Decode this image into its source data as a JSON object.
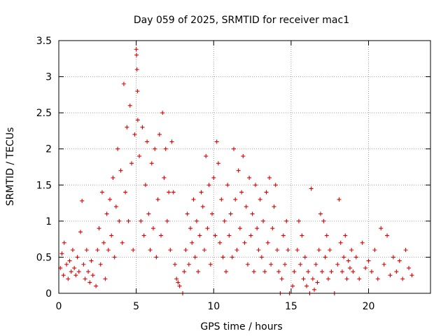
{
  "chart_data": {
    "type": "scatter",
    "title": "Day 059 of 2025, SRMTID for receiver mac1",
    "xlabel": "GPS time / hours",
    "ylabel": "SRMTID / TECUs",
    "xlim": [
      0,
      24
    ],
    "ylim": [
      0,
      3.5
    ],
    "grid": true,
    "marker": "+",
    "marker_color": "#e00000",
    "x_ticks": [
      0,
      5,
      10,
      15,
      20
    ],
    "x_tick_labels": [
      "0",
      "5",
      "10",
      "15",
      "20"
    ],
    "y_ticks": [
      0,
      0.5,
      1,
      1.5,
      2,
      2.5,
      3,
      3.5
    ],
    "y_tick_labels": [
      "0",
      "0.5",
      "1",
      "1.5",
      "2",
      "2.5",
      "3",
      "3.5"
    ],
    "series": [
      {
        "name": "mac1",
        "points": [
          [
            0.1,
            0.35
          ],
          [
            0.2,
            0.55
          ],
          [
            0.3,
            0.25
          ],
          [
            0.35,
            0.7
          ],
          [
            0.5,
            0.4
          ],
          [
            0.6,
            0.2
          ],
          [
            0.7,
            0.45
          ],
          [
            0.8,
            0.3
          ],
          [
            0.9,
            0.6
          ],
          [
            1.0,
            0.35
          ],
          [
            1.1,
            0.25
          ],
          [
            1.2,
            0.5
          ],
          [
            1.3,
            0.3
          ],
          [
            1.4,
            0.85
          ],
          [
            1.5,
            1.28
          ],
          [
            1.6,
            0.4
          ],
          [
            1.7,
            0.2
          ],
          [
            1.8,
            0.6
          ],
          [
            1.9,
            0.3
          ],
          [
            2.0,
            0.15
          ],
          [
            2.1,
            0.45
          ],
          [
            2.2,
            0.25
          ],
          [
            2.4,
            0.1
          ],
          [
            2.5,
            0.6
          ],
          [
            2.6,
            0.9
          ],
          [
            2.7,
            0.4
          ],
          [
            2.8,
            1.4
          ],
          [
            2.9,
            0.7
          ],
          [
            3.0,
            0.2
          ],
          [
            3.1,
            1.1
          ],
          [
            3.2,
            0.6
          ],
          [
            3.3,
            1.3
          ],
          [
            3.4,
            0.8
          ],
          [
            3.5,
            1.6
          ],
          [
            3.6,
            0.5
          ],
          [
            3.7,
            1.2
          ],
          [
            3.8,
            2.0
          ],
          [
            3.9,
            1.0
          ],
          [
            4.0,
            1.7
          ],
          [
            4.1,
            0.7
          ],
          [
            4.2,
            2.9
          ],
          [
            4.3,
            1.4
          ],
          [
            4.4,
            2.3
          ],
          [
            4.5,
            1.0
          ],
          [
            4.6,
            2.6
          ],
          [
            4.7,
            1.8
          ],
          [
            4.8,
            0.6
          ],
          [
            4.9,
            2.2
          ],
          [
            5.0,
            3.38
          ],
          [
            5.02,
            3.3
          ],
          [
            5.05,
            3.1
          ],
          [
            5.08,
            2.8
          ],
          [
            5.1,
            2.4
          ],
          [
            5.2,
            1.9
          ],
          [
            5.3,
            1.0
          ],
          [
            5.4,
            2.3
          ],
          [
            5.5,
            0.8
          ],
          [
            5.6,
            1.5
          ],
          [
            5.7,
            2.1
          ],
          [
            5.8,
            1.1
          ],
          [
            5.9,
            0.6
          ],
          [
            6.0,
            1.8
          ],
          [
            6.1,
            0.9
          ],
          [
            6.2,
            2.0
          ],
          [
            6.3,
            0.5
          ],
          [
            6.4,
            1.3
          ],
          [
            6.5,
            2.2
          ],
          [
            6.6,
            0.8
          ],
          [
            6.7,
            2.5
          ],
          [
            6.8,
            1.6
          ],
          [
            6.9,
            2.0
          ],
          [
            7.0,
            1.0
          ],
          [
            7.1,
            1.4
          ],
          [
            7.2,
            0.6
          ],
          [
            7.3,
            2.1
          ],
          [
            7.4,
            1.4
          ],
          [
            7.5,
            0.4
          ],
          [
            7.6,
            0.2
          ],
          [
            7.7,
            0.15
          ],
          [
            7.8,
            0.1
          ],
          [
            8.0,
            0.0
          ],
          [
            8.1,
            0.3
          ],
          [
            8.2,
            0.6
          ],
          [
            8.3,
            1.1
          ],
          [
            8.4,
            0.4
          ],
          [
            8.5,
            0.9
          ],
          [
            8.6,
            0.7
          ],
          [
            8.7,
            1.3
          ],
          [
            8.8,
            0.5
          ],
          [
            8.9,
            1.0
          ],
          [
            9.0,
            0.3
          ],
          [
            9.1,
            0.8
          ],
          [
            9.2,
            1.4
          ],
          [
            9.3,
            1.2
          ],
          [
            9.4,
            0.6
          ],
          [
            9.5,
            1.9
          ],
          [
            9.6,
            0.9
          ],
          [
            9.7,
            1.5
          ],
          [
            9.8,
            0.4
          ],
          [
            9.9,
            1.1
          ],
          [
            10.0,
            1.6
          ],
          [
            10.1,
            0.8
          ],
          [
            10.2,
            2.1
          ],
          [
            10.3,
            1.8
          ],
          [
            10.4,
            0.7
          ],
          [
            10.5,
            1.3
          ],
          [
            10.6,
            0.5
          ],
          [
            10.7,
            1.0
          ],
          [
            10.8,
            0.3
          ],
          [
            10.9,
            1.5
          ],
          [
            11.0,
            0.8
          ],
          [
            11.1,
            1.1
          ],
          [
            11.2,
            0.5
          ],
          [
            11.3,
            2.0
          ],
          [
            11.4,
            1.3
          ],
          [
            11.5,
            0.6
          ],
          [
            11.6,
            1.7
          ],
          [
            11.7,
            0.9
          ],
          [
            11.8,
            1.4
          ],
          [
            11.9,
            1.9
          ],
          [
            12.0,
            0.7
          ],
          [
            12.1,
            1.2
          ],
          [
            12.2,
            0.4
          ],
          [
            12.3,
            1.6
          ],
          [
            12.4,
            0.8
          ],
          [
            12.5,
            1.1
          ],
          [
            12.6,
            0.3
          ],
          [
            12.7,
            1.5
          ],
          [
            12.8,
            0.9
          ],
          [
            12.9,
            0.6
          ],
          [
            13.0,
            1.3
          ],
          [
            13.1,
            0.5
          ],
          [
            13.2,
            1.0
          ],
          [
            13.3,
            0.3
          ],
          [
            13.4,
            1.4
          ],
          [
            13.5,
            0.7
          ],
          [
            13.6,
            1.6
          ],
          [
            13.7,
            0.4
          ],
          [
            13.8,
            0.9
          ],
          [
            13.9,
            1.2
          ],
          [
            14.0,
            1.5
          ],
          [
            14.1,
            0.6
          ],
          [
            14.2,
            0.3
          ],
          [
            14.3,
            0.0
          ],
          [
            14.4,
            0.2
          ],
          [
            14.5,
            0.8
          ],
          [
            14.6,
            0.4
          ],
          [
            14.7,
            1.0
          ],
          [
            14.8,
            0.6
          ],
          [
            14.9,
            0.0
          ],
          [
            15.1,
            0.1
          ],
          [
            15.2,
            0.3
          ],
          [
            15.4,
            0.6
          ],
          [
            15.5,
            1.0
          ],
          [
            15.6,
            0.4
          ],
          [
            15.7,
            0.8
          ],
          [
            15.8,
            0.2
          ],
          [
            15.9,
            0.5
          ],
          [
            16.0,
            0.1
          ],
          [
            16.1,
            0.3
          ],
          [
            16.2,
            0.0
          ],
          [
            16.3,
            1.45
          ],
          [
            16.4,
            0.2
          ],
          [
            16.5,
            0.05
          ],
          [
            16.6,
            0.4
          ],
          [
            16.7,
            0.15
          ],
          [
            16.8,
            0.6
          ],
          [
            16.9,
            1.1
          ],
          [
            17.0,
            0.3
          ],
          [
            17.1,
            1.0
          ],
          [
            17.2,
            0.5
          ],
          [
            17.3,
            0.8
          ],
          [
            17.4,
            0.2
          ],
          [
            17.5,
            0.6
          ],
          [
            17.6,
            0.3
          ],
          [
            17.8,
            0.0
          ],
          [
            18.0,
            0.4
          ],
          [
            18.1,
            1.3
          ],
          [
            18.2,
            0.7
          ],
          [
            18.3,
            0.3
          ],
          [
            18.4,
            0.5
          ],
          [
            18.5,
            0.8
          ],
          [
            18.6,
            0.2
          ],
          [
            18.7,
            0.45
          ],
          [
            18.8,
            0.35
          ],
          [
            18.9,
            0.6
          ],
          [
            19.0,
            0.3
          ],
          [
            19.2,
            0.5
          ],
          [
            19.4,
            0.2
          ],
          [
            19.6,
            0.7
          ],
          [
            19.8,
            0.35
          ],
          [
            20.0,
            0.45
          ],
          [
            20.2,
            0.3
          ],
          [
            20.4,
            0.6
          ],
          [
            20.6,
            0.2
          ],
          [
            20.8,
            0.9
          ],
          [
            21.0,
            0.4
          ],
          [
            21.2,
            0.8
          ],
          [
            21.4,
            0.25
          ],
          [
            21.6,
            0.5
          ],
          [
            21.8,
            0.3
          ],
          [
            22.0,
            0.45
          ],
          [
            22.2,
            0.2
          ],
          [
            22.4,
            0.6
          ],
          [
            22.6,
            0.35
          ],
          [
            22.8,
            0.25
          ]
        ]
      }
    ]
  }
}
